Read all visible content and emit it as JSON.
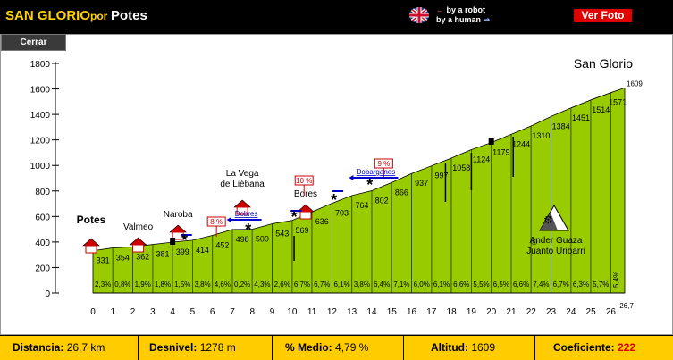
{
  "header": {
    "title": "SAN GLORIO",
    "por": "por",
    "start": "Potes",
    "lang_robot": "by a robot",
    "lang_human": "by a human",
    "ver_foto": "Ver Foto",
    "cerrar": "Cerrar"
  },
  "chart_data": {
    "type": "area",
    "title": "San Glorio",
    "y_ticks": [
      "0",
      "200",
      "400",
      "600",
      "800",
      "1000",
      "1200",
      "1400",
      "1600",
      "1800"
    ],
    "ylim": [
      0,
      1800
    ],
    "x_ticks": [
      "0",
      "1",
      "2",
      "3",
      "4",
      "5",
      "6",
      "7",
      "8",
      "9",
      "10",
      "11",
      "12",
      "13",
      "14",
      "15",
      "16",
      "17",
      "18",
      "19",
      "20",
      "21",
      "22",
      "23",
      "24",
      "25",
      "26",
      "26,7"
    ],
    "xlim": [
      0,
      26.7
    ],
    "points": [
      {
        "km": 0,
        "alt": 331
      },
      {
        "km": 1,
        "alt": 354
      },
      {
        "km": 2,
        "alt": 362
      },
      {
        "km": 3,
        "alt": 381
      },
      {
        "km": 4,
        "alt": 399
      },
      {
        "km": 5,
        "alt": 414
      },
      {
        "km": 6,
        "alt": 452
      },
      {
        "km": 7,
        "alt": 498
      },
      {
        "km": 8,
        "alt": 500
      },
      {
        "km": 9,
        "alt": 543
      },
      {
        "km": 10,
        "alt": 569
      },
      {
        "km": 11,
        "alt": 636
      },
      {
        "km": 12,
        "alt": 703
      },
      {
        "km": 13,
        "alt": 764
      },
      {
        "km": 14,
        "alt": 802
      },
      {
        "km": 15,
        "alt": 866
      },
      {
        "km": 16,
        "alt": 937
      },
      {
        "km": 17,
        "alt": 997
      },
      {
        "km": 18,
        "alt": 1058
      },
      {
        "km": 19,
        "alt": 1124
      },
      {
        "km": 20,
        "alt": 1179
      },
      {
        "km": 21,
        "alt": 1244
      },
      {
        "km": 22,
        "alt": 1310
      },
      {
        "km": 23,
        "alt": 1384
      },
      {
        "km": 24,
        "alt": 1451
      },
      {
        "km": 25,
        "alt": 1514
      },
      {
        "km": 26,
        "alt": 1571
      },
      {
        "km": 26.7,
        "alt": 1609
      }
    ],
    "gradients": [
      "2,3%",
      "0,8%",
      "1,9%",
      "1,8%",
      "1,5%",
      "3,8%",
      "4,6%",
      "0,2%",
      "4,3%",
      "2,6%",
      "6,7%",
      "6,7%",
      "6,1%",
      "3,8%",
      "6,4%",
      "7,1%",
      "6,0%",
      "6,1%",
      "6,6%",
      "5,5%",
      "6,5%",
      "6,6%",
      "7,4%",
      "6,7%",
      "6,3%",
      "5,7%",
      "5,4%"
    ],
    "places": [
      {
        "name": "Potes",
        "km": 0
      },
      {
        "name": "Valmeo",
        "km": 2
      },
      {
        "name": "Naroba",
        "km": 4
      },
      {
        "name": "La Vega",
        "name2": "de Liébana",
        "km": 7.5
      },
      {
        "name": "Bores",
        "km": 10.5
      }
    ],
    "markers": [
      {
        "label": "8 %",
        "km": 6.2
      },
      {
        "label": "10 %",
        "km": 10.6
      },
      {
        "label": "9 %",
        "km": 14.6
      }
    ],
    "roads": [
      {
        "label": "Dobres",
        "km": 7.7
      },
      {
        "label": "Dobarganes",
        "km": 14.2
      }
    ],
    "credit1": "Ander Guaza",
    "credit2": "Juanto Uribarri",
    "copyright": "©"
  },
  "footer": {
    "distancia_label": "Distancia:",
    "distancia": "26,7 km",
    "desnivel_label": "Desnivel:",
    "desnivel": "1278 m",
    "medio_label": "% Medio:",
    "medio": "4,79 %",
    "altitud_label": "Altitud:",
    "altitud": "1609",
    "coef_label": "Coeficiente:",
    "coef": "222"
  },
  "colors": {
    "area": "#99cc00",
    "title": "#ffd200",
    "footer": "#ffcc00",
    "accent": "#e00000"
  }
}
